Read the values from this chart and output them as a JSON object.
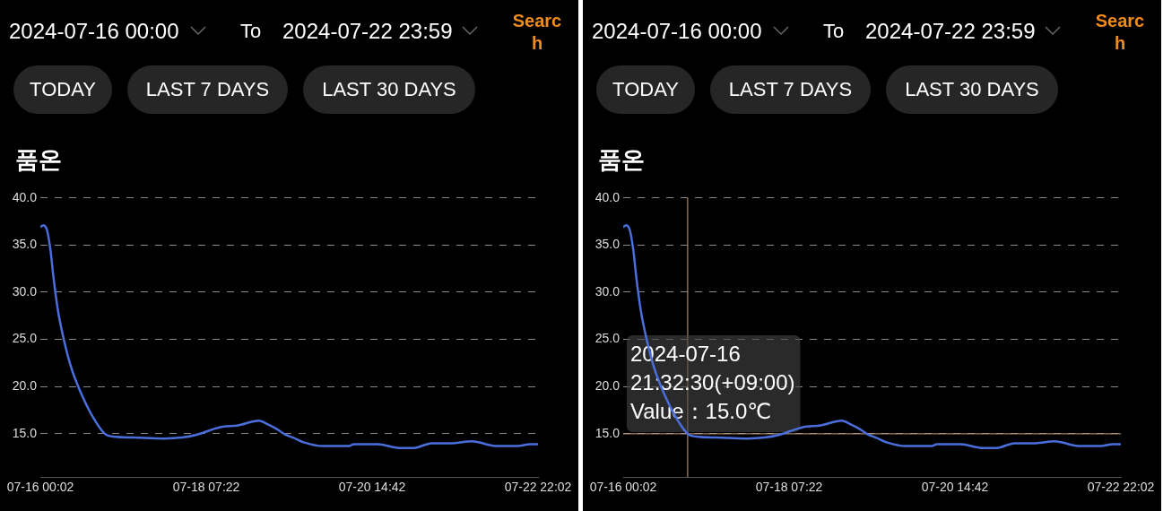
{
  "chart_data": [
    {
      "type": "line",
      "title": "품온",
      "annotations": [
        "2024-07-16 00:00",
        "To",
        "2024-07-22 23:59",
        "Search",
        "TODAY",
        "LAST 7 DAYS",
        "LAST 30 DAYS"
      ],
      "x": [
        "2024-07-16T00:02",
        "2024-07-16T01:02",
        "2024-07-16T02:14",
        "2024-07-16T03:26",
        "2024-07-16T04:26",
        "2024-07-16T05:56",
        "2024-07-16T07:56",
        "2024-07-16T10:20",
        "2024-07-16T13:20",
        "2024-07-16T17:20",
        "2024-07-16T21:32:30",
        "2024-07-17T00:20",
        "2024-07-17T07:14",
        "2024-07-17T17:08",
        "2024-07-17T23:08",
        "2024-07-18T04:08",
        "2024-07-18T12:02",
        "2024-07-18T18:02",
        "2024-07-19T00:56",
        "2024-07-19T03:56",
        "2024-07-19T06:56",
        "2024-07-19T09:50",
        "2024-07-19T12:20",
        "2024-07-19T15:50",
        "2024-07-19T22:20",
        "2024-07-20T06:44",
        "2024-07-20T08:44",
        "2024-07-20T16:38",
        "2024-07-20T23:38",
        "2024-07-21T04:38",
        "2024-07-21T10:32",
        "2024-07-21T17:32",
        "2024-07-21T23:56",
        "2024-07-22T08:26",
        "2024-07-22T15:20",
        "2024-07-22T19:20",
        "2024-07-22T22:02"
      ],
      "series": [
        {
          "color": "#4a6fdc",
          "values": [
            36.9,
            37.1,
            36.6,
            34.4,
            31.5,
            28.0,
            24.9,
            22.0,
            19.5,
            16.9,
            15.0,
            14.7,
            14.6,
            14.5,
            14.6,
            14.9,
            15.7,
            15.9,
            16.4,
            16.0,
            15.5,
            14.9,
            14.6,
            14.1,
            13.7,
            13.7,
            13.9,
            13.9,
            13.5,
            13.5,
            14.0,
            14.0,
            14.2,
            13.7,
            13.7,
            13.9,
            13.9
          ]
        }
      ],
      "xlim": [
        "2024-07-16T00:02",
        "2024-07-22T22:02"
      ],
      "xticks": [
        {
          "value": "2024-07-16T00:02",
          "label": "07-16 00:02"
        },
        {
          "value": "2024-07-18T07:22",
          "label": "07-18 07:22"
        },
        {
          "value": "2024-07-20T14:42",
          "label": "07-20 14:42"
        },
        {
          "value": "2024-07-22T22:02",
          "label": "07-22 22:02"
        }
      ],
      "ylim": [
        10.4,
        40
      ],
      "yticks": [
        {
          "value": 15,
          "label": "15.0"
        },
        {
          "value": 20,
          "label": "20.0"
        },
        {
          "value": 25,
          "label": "25.0"
        },
        {
          "value": 30,
          "label": "30.0"
        },
        {
          "value": 35,
          "label": "35.0"
        },
        {
          "value": 40,
          "label": "40.0"
        }
      ],
      "grid": "y",
      "legend": false
    },
    {
      "type": "line",
      "title": "품온",
      "annotations": [
        "2024-07-16 00:00",
        "To",
        "2024-07-22 23:59",
        "Search",
        "TODAY",
        "LAST 7 DAYS",
        "LAST 30 DAYS",
        {
          "text": "2024-07-16\n21:32:30(+09:00)\nValue：15.0℃",
          "x": "2024-07-16T21:32:30",
          "y": 15.0
        }
      ],
      "x": [
        "2024-07-16T00:02",
        "2024-07-16T01:02",
        "2024-07-16T02:14",
        "2024-07-16T03:26",
        "2024-07-16T04:26",
        "2024-07-16T05:56",
        "2024-07-16T07:56",
        "2024-07-16T10:20",
        "2024-07-16T13:20",
        "2024-07-16T17:20",
        "2024-07-16T21:32:30",
        "2024-07-17T00:20",
        "2024-07-17T07:14",
        "2024-07-17T17:08",
        "2024-07-17T23:08",
        "2024-07-18T04:08",
        "2024-07-18T12:02",
        "2024-07-18T18:02",
        "2024-07-19T00:56",
        "2024-07-19T03:56",
        "2024-07-19T06:56",
        "2024-07-19T09:50",
        "2024-07-19T12:20",
        "2024-07-19T15:50",
        "2024-07-19T22:20",
        "2024-07-20T06:44",
        "2024-07-20T08:44",
        "2024-07-20T16:38",
        "2024-07-20T23:38",
        "2024-07-21T04:38",
        "2024-07-21T10:32",
        "2024-07-21T17:32",
        "2024-07-21T23:56",
        "2024-07-22T08:26",
        "2024-07-22T15:20",
        "2024-07-22T19:20",
        "2024-07-22T22:02"
      ],
      "series": [
        {
          "color": "#4a6fdc",
          "values": [
            36.9,
            37.1,
            36.6,
            34.4,
            31.5,
            28.0,
            24.9,
            22.0,
            19.5,
            16.9,
            15.0,
            14.7,
            14.6,
            14.5,
            14.6,
            14.9,
            15.7,
            15.9,
            16.4,
            16.0,
            15.5,
            14.9,
            14.6,
            14.1,
            13.7,
            13.7,
            13.9,
            13.9,
            13.5,
            13.5,
            14.0,
            14.0,
            14.2,
            13.7,
            13.7,
            13.9,
            13.9
          ]
        }
      ],
      "xlim": [
        "2024-07-16T00:02",
        "2024-07-22T22:02"
      ],
      "xticks": [
        {
          "value": "2024-07-16T00:02",
          "label": "07-16 00:02"
        },
        {
          "value": "2024-07-18T07:22",
          "label": "07-18 07:22"
        },
        {
          "value": "2024-07-20T14:42",
          "label": "07-20 14:42"
        },
        {
          "value": "2024-07-22T22:02",
          "label": "07-22 22:02"
        }
      ],
      "ylim": [
        10.4,
        40
      ],
      "yticks": [
        {
          "value": 15,
          "label": "15.0"
        },
        {
          "value": 20,
          "label": "20.0"
        },
        {
          "value": 25,
          "label": "25.0"
        },
        {
          "value": 30,
          "label": "30.0"
        },
        {
          "value": 35,
          "label": "35.0"
        },
        {
          "value": 40,
          "label": "40.0"
        }
      ],
      "ref_lines": [
        {
          "axis": "x",
          "value": "2024-07-16T21:32:30",
          "color": "#c8a080"
        },
        {
          "axis": "y",
          "value": 15.0,
          "color": "#c8a080"
        }
      ],
      "grid": "y",
      "legend": false
    }
  ]
}
